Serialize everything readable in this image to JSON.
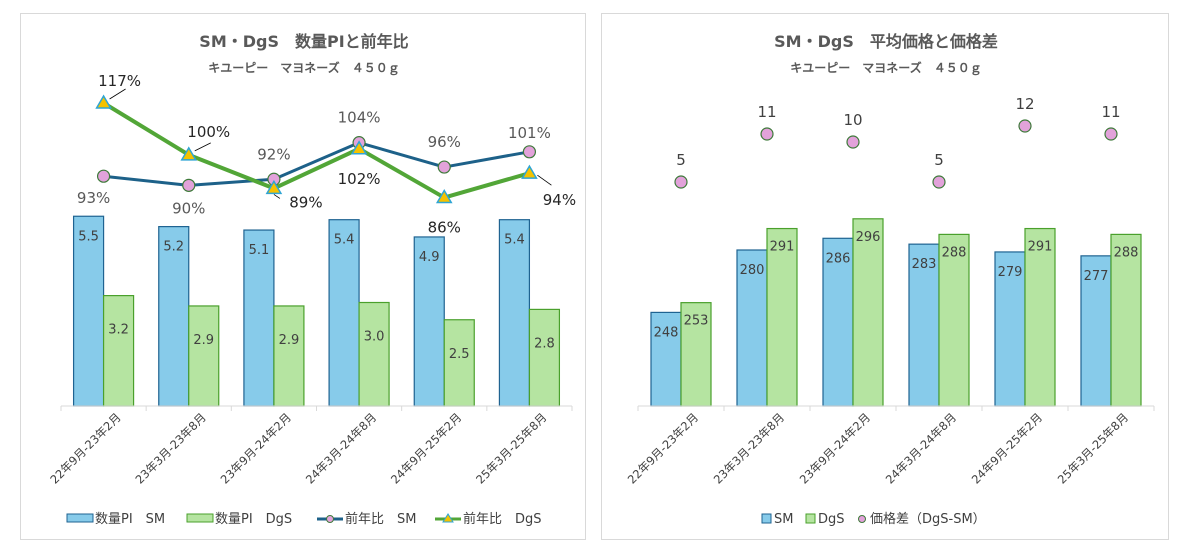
{
  "chart_data": [
    {
      "type": "bar+line",
      "title": "SM・DgS　数量PIと前年比",
      "subtitle": "キユーピー　マヨネーズ　４５０ｇ",
      "categories": [
        "22年9月-23年2月",
        "23年3月-23年8月",
        "23年9月-24年2月",
        "24年3月-24年8月",
        "24年9月-25年2月",
        "25年3月-25年8月"
      ],
      "bar_series": [
        {
          "name": "数量PI　SM",
          "values": [
            5.5,
            5.2,
            5.1,
            5.4,
            4.9,
            5.4
          ],
          "labels": [
            "5.5",
            "5.2",
            "5.1",
            "5.4",
            "4.9",
            "5.4"
          ],
          "fill": "#87cbea",
          "stroke": "#1f6391"
        },
        {
          "name": "数量PI　DgS",
          "values": [
            3.2,
            2.9,
            2.9,
            3.0,
            2.5,
            2.8
          ],
          "labels": [
            "3.2",
            "2.9",
            "2.9",
            "3.0",
            "2.5",
            "2.8"
          ],
          "fill": "#b5e4a1",
          "stroke": "#4aa02c"
        }
      ],
      "line_series": [
        {
          "name": "前年比　SM",
          "values": [
            93,
            90,
            92,
            104,
            96,
            101
          ],
          "labels": [
            "93%",
            "90%",
            "92%",
            "104%",
            "96%",
            "101%"
          ],
          "line": "#1d6189",
          "marker": "circle",
          "marker_fill": "#e2a2da",
          "marker_stroke": "#3e7a3a"
        },
        {
          "name": "前年比　DgS",
          "values": [
            117,
            100,
            89,
            102,
            86,
            94
          ],
          "labels": [
            "117%",
            "100%",
            "89%",
            "102%",
            "86%",
            "94%"
          ],
          "line": "#52a637",
          "marker": "triangle",
          "marker_fill": "#f5c200",
          "marker_stroke": "#2fa5d4"
        }
      ],
      "bar_ylim": [
        0,
        6.5
      ],
      "line_ylim": [
        60,
        125
      ],
      "grid": false,
      "legend": "bottom",
      "legend_entries": [
        "数量PI　SM",
        "数量PI　DgS",
        "前年比　SM",
        "前年比　DgS"
      ]
    },
    {
      "type": "bar+scatter",
      "title": "SM・DgS　平均価格と価格差",
      "subtitle": "キユーピー　マヨネーズ　４５０ｇ",
      "categories": [
        "22年9月-23年2月",
        "23年3月-23年8月",
        "23年9月-24年2月",
        "24年3月-24年8月",
        "24年9月-25年2月",
        "25年3月-25年8月"
      ],
      "bar_series": [
        {
          "name": "SM",
          "values": [
            248,
            280,
            286,
            283,
            279,
            277
          ],
          "labels": [
            "248",
            "280",
            "286",
            "283",
            "279",
            "277"
          ],
          "fill": "#87cbea",
          "stroke": "#1f6391"
        },
        {
          "name": "DgS",
          "values": [
            253,
            291,
            296,
            288,
            291,
            288
          ],
          "labels": [
            "253",
            "291",
            "296",
            "288",
            "291",
            "288"
          ],
          "fill": "#b5e4a1",
          "stroke": "#4aa02c"
        }
      ],
      "scatter_series": [
        {
          "name": "価格差（DgS-SM）",
          "values": [
            5,
            11,
            10,
            5,
            12,
            11
          ],
          "labels": [
            "5",
            "11",
            "10",
            "5",
            "12",
            "11"
          ],
          "marker_fill": "#e2a2da",
          "marker_stroke": "#3e7a3a"
        }
      ],
      "bar_ylim": [
        0,
        380
      ],
      "scatter_ylim": [
        -60,
        15
      ],
      "grid": false,
      "legend": "bottom",
      "legend_entries": [
        "SM",
        "DgS",
        "価格差（DgS-SM）"
      ]
    }
  ]
}
